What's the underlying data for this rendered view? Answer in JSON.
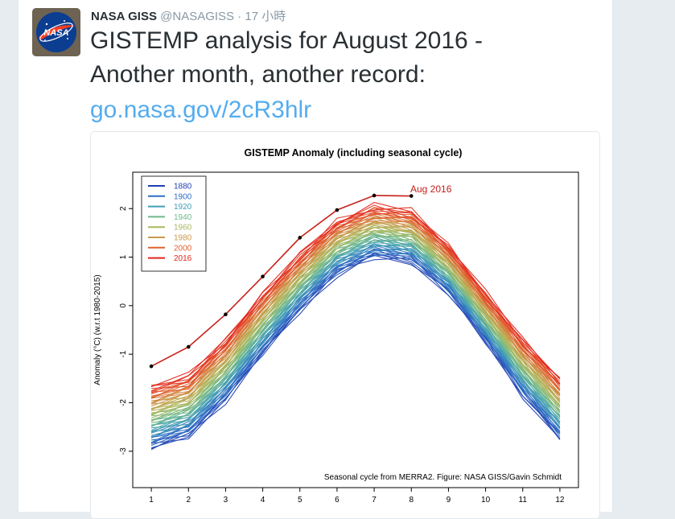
{
  "tweet": {
    "author_name": "NASA GISS",
    "author_handle": "@NASAGISS",
    "separator": "·",
    "timestamp": "17 小時",
    "text_line1": "GISTEMP analysis for August 2016 -",
    "text_line2": "Another month, another record:",
    "link": "go.nasa.gov/2cR3hlr",
    "avatar_label": "NASA"
  },
  "colors": {
    "link": "#55acee",
    "text": "#292f33",
    "muted": "#8899a6"
  },
  "chart_data": {
    "type": "line",
    "title": "GISTEMP Anomaly (including seasonal cycle)",
    "ylabel": "Anomaly (°C) (w.r.t 1980-2015)",
    "xlabel": "",
    "x": [
      1,
      2,
      3,
      4,
      5,
      6,
      7,
      8,
      9,
      10,
      11,
      12
    ],
    "x_ticks": [
      "1",
      "2",
      "3",
      "4",
      "5",
      "6",
      "7",
      "8",
      "9",
      "10",
      "11",
      "12"
    ],
    "y_ticks": [
      "-3",
      "-2",
      "-1",
      "0",
      "1",
      "2"
    ],
    "y_tick_values": [
      -3,
      -2,
      -1,
      0,
      1,
      2
    ],
    "xlim": [
      0.5,
      12.5
    ],
    "ylim": [
      -3.75,
      2.75
    ],
    "legend_position": "top-left",
    "legend": [
      {
        "label": "1880",
        "color": "#1f3fb2"
      },
      {
        "label": "1900",
        "color": "#2f6fc4"
      },
      {
        "label": "1920",
        "color": "#3f9fb5"
      },
      {
        "label": "1940",
        "color": "#6fb88a"
      },
      {
        "label": "1960",
        "color": "#a9b85c"
      },
      {
        "label": "1980",
        "color": "#c99a4a"
      },
      {
        "label": "2000",
        "color": "#e0602f"
      },
      {
        "label": "2016",
        "color": "#e3241b"
      }
    ],
    "baseline_early": [
      -2.95,
      -2.7,
      -1.95,
      -1.0,
      -0.1,
      0.65,
      1.0,
      0.9,
      0.25,
      -0.75,
      -1.85,
      -2.75
    ],
    "baseline_recent": [
      -1.65,
      -1.45,
      -0.7,
      0.25,
      1.05,
      1.75,
      2.05,
      1.95,
      1.25,
      0.25,
      -0.7,
      -1.5
    ],
    "series_2016": {
      "name": "2016",
      "values": [
        -1.25,
        -0.85,
        -0.18,
        0.6,
        1.4,
        1.97,
        2.27,
        2.26
      ],
      "color": "#c8201a"
    },
    "annotation": "Aug 2016",
    "caption": "Seasonal cycle from MERRA2. Figure: NASA GISS/Gavin Schmidt"
  }
}
